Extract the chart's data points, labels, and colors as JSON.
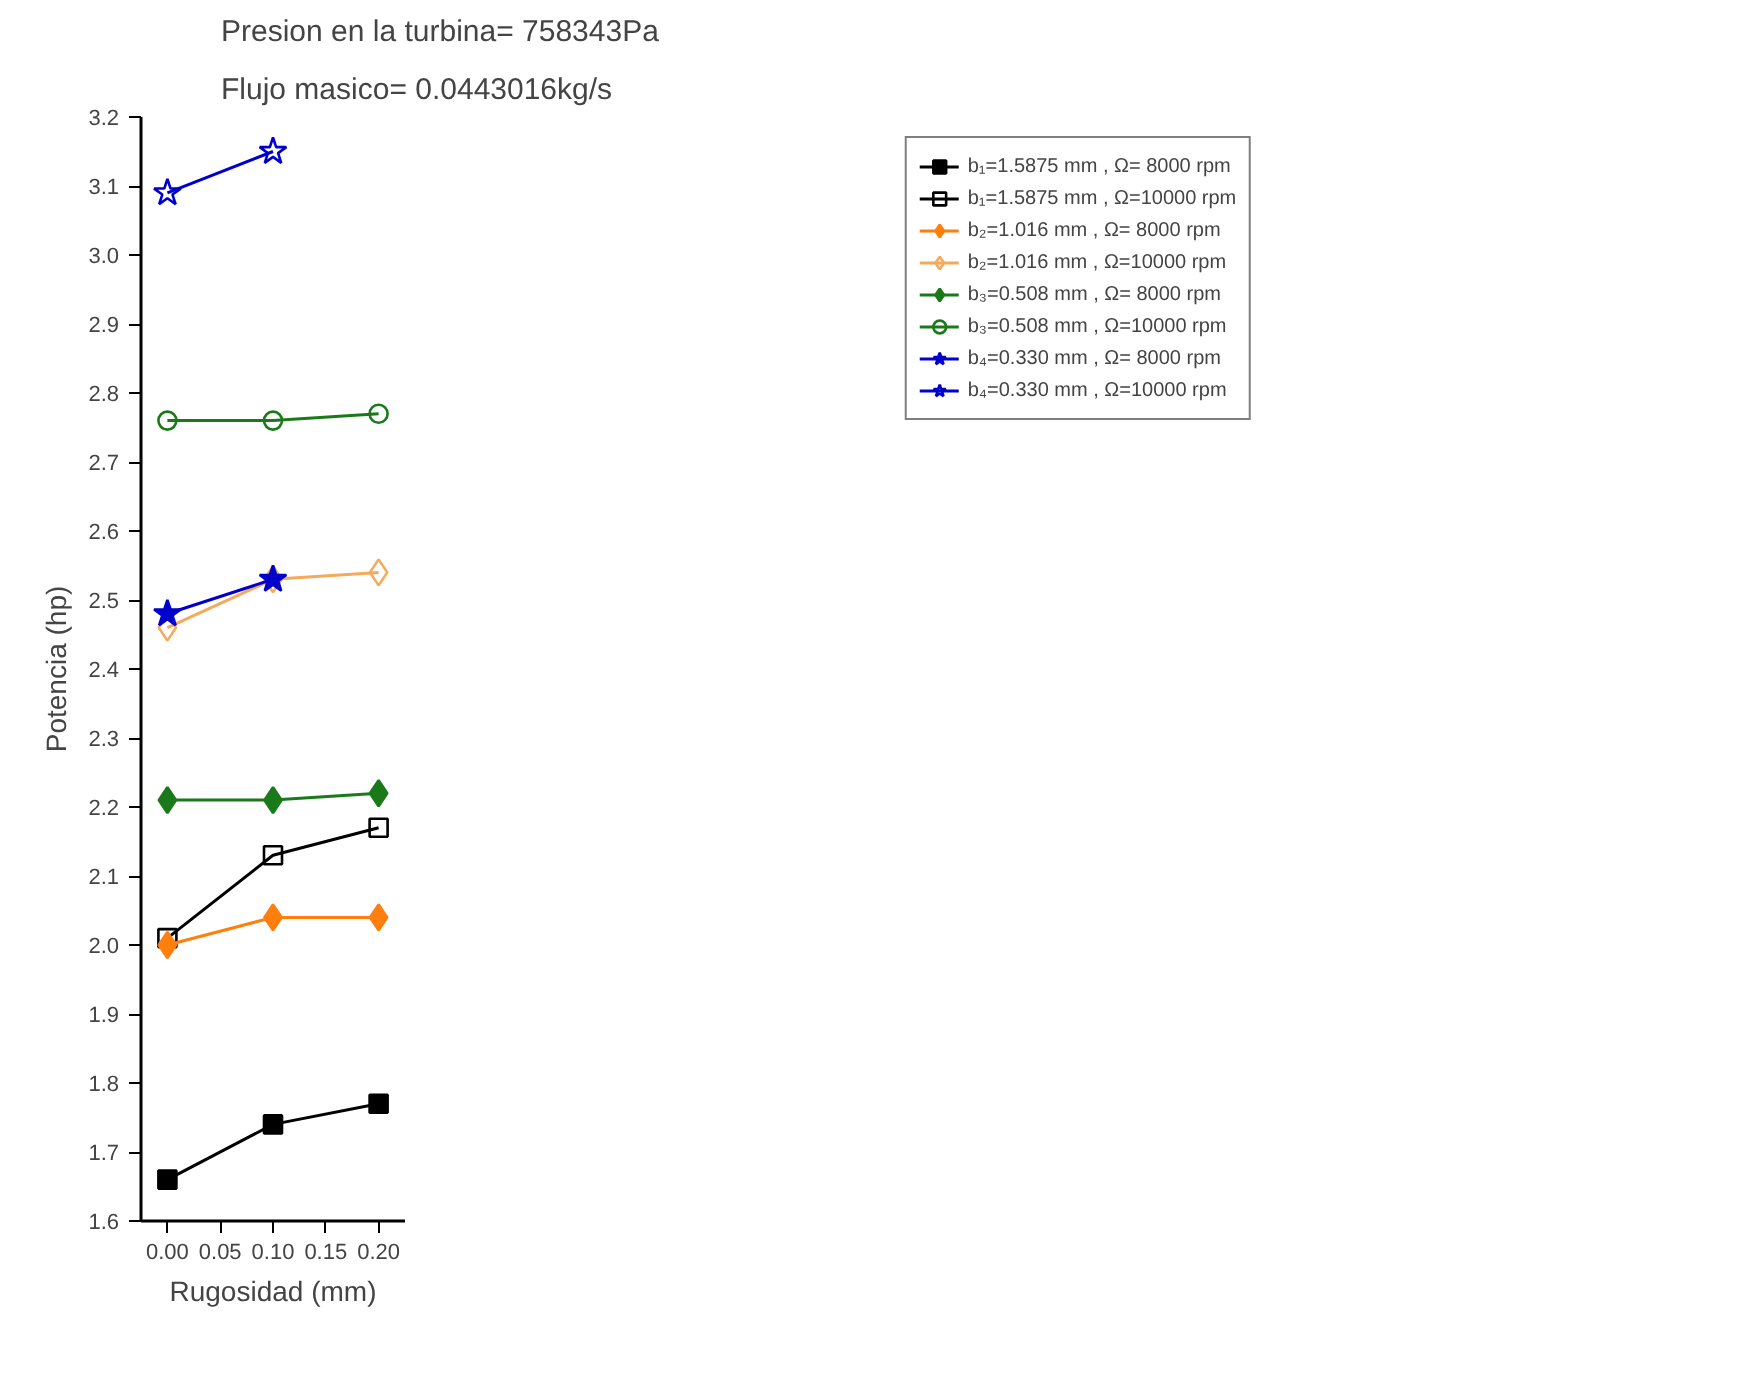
{
  "chart_data": {
    "type": "line",
    "title": "Presion en la turbina= 758343Pa",
    "subtitle": "Flujo masico= 0.0443016kg/s",
    "xlabel": "Rugosidad (mm)",
    "ylabel": "Potencia (hp)",
    "x": [
      0.0,
      0.1,
      0.2
    ],
    "xlim": [
      -0.025,
      0.225
    ],
    "xticks": [
      {
        "value": 0,
        "label": "0.00"
      },
      0.05,
      {
        "value": 0.1,
        "label": "0.10"
      },
      0.15,
      {
        "value": 0.2,
        "label": "0.20"
      }
    ],
    "ylim": [
      1.6,
      3.2
    ],
    "yticks": [
      1.6,
      1.7,
      1.8,
      1.9,
      {
        "value": 2,
        "label": "2.0"
      },
      2.1,
      2.2,
      2.3,
      2.4,
      2.5,
      2.6,
      2.7,
      2.8,
      2.9,
      {
        "value": 3,
        "label": "3.0"
      },
      3.1,
      3.2
    ],
    "grid": false,
    "legend": "top right",
    "line_style": "solid",
    "series": [
      {
        "name": "b₁=1.5875 mm , Ω= 8000 rpm",
        "color": "#000000",
        "marker": "square",
        "values": [
          1.66,
          1.74,
          1.77
        ]
      },
      {
        "name": "b₁=1.5875 mm , Ω=10000 rpm",
        "color": "#000000",
        "marker": "square_open",
        "values": [
          2.01,
          2.13,
          2.17
        ]
      },
      {
        "name": "b₂=1.016 mm , Ω= 8000 rpm",
        "color": "#ff7f0e",
        "marker": "diamond",
        "values": [
          2.0,
          2.04,
          2.04
        ]
      },
      {
        "name": "b₂=1.016 mm , Ω=10000 rpm",
        "color": "#f5a95a",
        "marker": "diamond_open",
        "values": [
          2.46,
          2.53,
          2.54
        ]
      },
      {
        "name": "b₃=0.508 mm , Ω= 8000 rpm",
        "color": "#1a7a1a",
        "marker": "diamond",
        "values": [
          2.21,
          2.21,
          2.22
        ]
      },
      {
        "name": "b₃=0.508 mm , Ω=10000 rpm",
        "color": "#1a7a1a",
        "marker": "circle_open",
        "values": [
          2.76,
          2.76,
          2.77
        ]
      },
      {
        "name": "b₄=0.330 mm , Ω= 8000 rpm",
        "color": "#0000cc",
        "marker": "star",
        "values": [
          2.48,
          2.53,
          null
        ]
      },
      {
        "name": "b₄=0.330 mm , Ω=10000 rpm",
        "color": "#0000cc",
        "marker": "star_open",
        "values": [
          3.09,
          3.15,
          null
        ]
      }
    ]
  }
}
